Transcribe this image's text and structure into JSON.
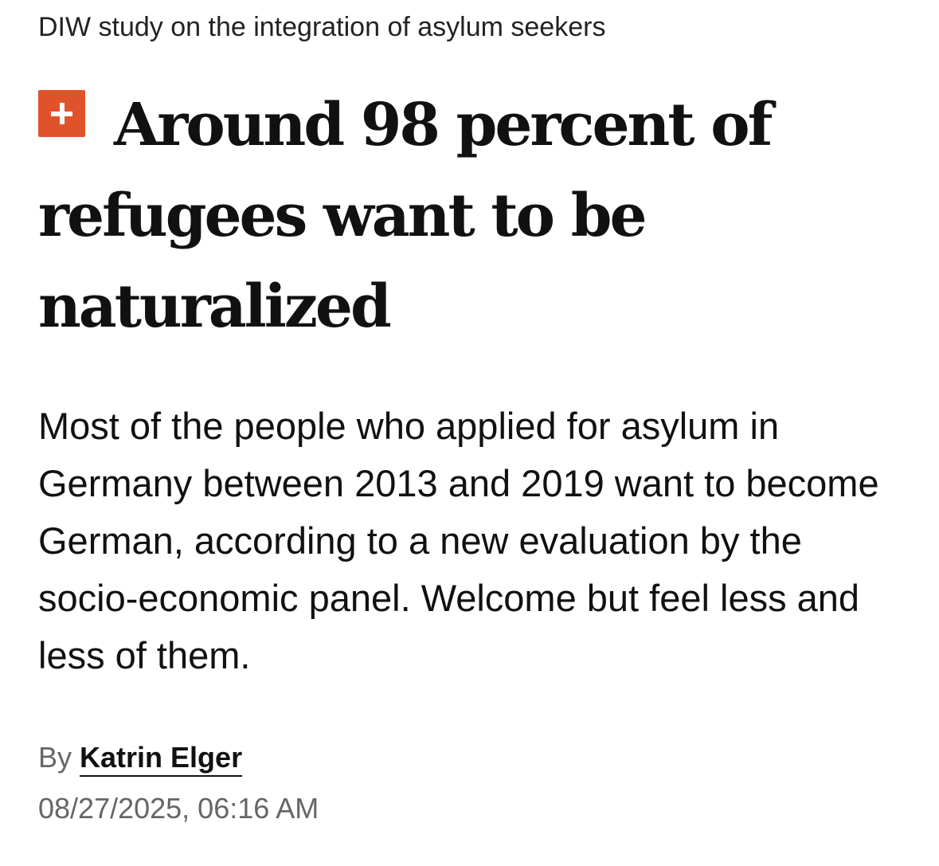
{
  "article": {
    "kicker": "DIW study on the integration of asylum seekers",
    "badge_icon": "plus-icon",
    "badge_color": "#e0532a",
    "headline": "Around 98 percent of refugees want to be naturalized",
    "teaser": "Most of the people who applied for asylum in Germany between 2013 and 2019 want to become German, according to a new evaluation by the socio-economic panel. Welcome but feel less and less of them.",
    "byline_prefix": "By",
    "author": "Katrin Elger",
    "timestamp": "08/27/2025, 06:16 AM"
  }
}
